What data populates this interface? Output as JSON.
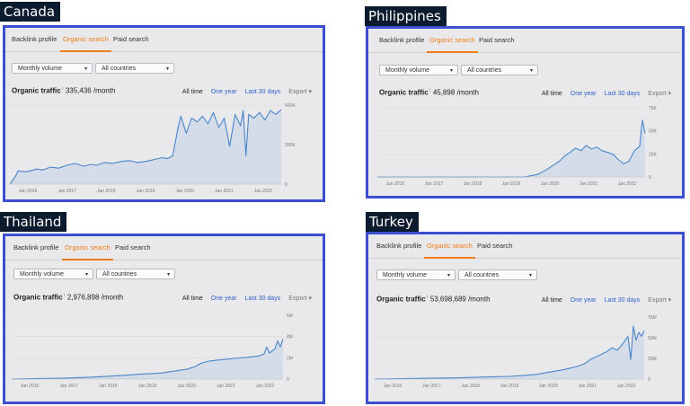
{
  "tabs": {
    "backlink": "Backlink profile",
    "organic": "Organic search",
    "paid": "Paid search"
  },
  "filters": {
    "volume": "Monthly volume",
    "countries": "All countries"
  },
  "metric_label": "Organic traffic",
  "info_glyph": "i",
  "ranges": {
    "all": "All time",
    "one_year": "One year",
    "last30": "Last 30 days",
    "export": "Export"
  },
  "caret": "▾",
  "colors": {
    "accent": "#f17c1a",
    "line": "#4a86c9",
    "fill": "#d3dce8",
    "border": "#3c4fd1",
    "link": "#2f5fc7"
  },
  "x_ticks": [
    "Jan 2016",
    "Jan 2017",
    "Jan 2018",
    "Jan 2019",
    "Jan 2020",
    "Jan 2021",
    "Jan 2022"
  ],
  "panels": [
    {
      "country": "Canada",
      "traffic": "335,436 /month",
      "y_ticks": [
        "400K",
        "200K",
        "0"
      ],
      "chart_data": {
        "type": "area",
        "title": "",
        "x": [
          0.0,
          0.01,
          0.02,
          0.03,
          0.06,
          0.1,
          0.12,
          0.15,
          0.18,
          0.21,
          0.24,
          0.27,
          0.3,
          0.32,
          0.35,
          0.38,
          0.41,
          0.44,
          0.47,
          0.5,
          0.53,
          0.56,
          0.58,
          0.6,
          0.62,
          0.63,
          0.65,
          0.67,
          0.69,
          0.71,
          0.73,
          0.75,
          0.77,
          0.79,
          0.81,
          0.83,
          0.85,
          0.86,
          0.87,
          0.88,
          0.9,
          0.92,
          0.94,
          0.96,
          0.98,
          1.0
        ],
        "values": [
          0,
          20000,
          40000,
          70000,
          65000,
          80000,
          75000,
          90000,
          85000,
          100000,
          110000,
          95000,
          105000,
          100000,
          115000,
          110000,
          120000,
          125000,
          115000,
          120000,
          130000,
          140000,
          135000,
          150000,
          300000,
          360000,
          270000,
          350000,
          330000,
          360000,
          320000,
          380000,
          300000,
          350000,
          200000,
          370000,
          310000,
          390000,
          150000,
          370000,
          350000,
          380000,
          340000,
          390000,
          370000,
          395000
        ],
        "ylim": [
          0,
          400000
        ]
      }
    },
    {
      "country": "Philippines",
      "traffic": "45,898 /month",
      "y_ticks": [
        "75K",
        "50K",
        "25K",
        "0"
      ],
      "chart_data": {
        "type": "area",
        "title": "",
        "x": [
          0.0,
          0.2,
          0.4,
          0.55,
          0.6,
          0.63,
          0.66,
          0.68,
          0.7,
          0.72,
          0.74,
          0.76,
          0.78,
          0.8,
          0.82,
          0.84,
          0.86,
          0.88,
          0.9,
          0.92,
          0.94,
          0.96,
          0.98,
          0.99,
          1.0
        ],
        "values": [
          0,
          0,
          0,
          0,
          3000,
          8000,
          14000,
          18000,
          24000,
          28000,
          33000,
          30000,
          36000,
          32000,
          34000,
          30000,
          28000,
          26000,
          20000,
          15000,
          18000,
          30000,
          35000,
          65000,
          50000
        ],
        "ylim": [
          0,
          75000
        ]
      }
    },
    {
      "country": "Thailand",
      "traffic": "2,976,898 /month",
      "y_ticks": [
        "6M",
        "4M",
        "2M",
        "0"
      ],
      "chart_data": {
        "type": "area",
        "title": "",
        "x": [
          0.0,
          0.1,
          0.2,
          0.3,
          0.4,
          0.48,
          0.55,
          0.6,
          0.65,
          0.68,
          0.7,
          0.73,
          0.76,
          0.8,
          0.84,
          0.88,
          0.91,
          0.93,
          0.94,
          0.95,
          0.96,
          0.97,
          0.98,
          0.99,
          1.0
        ],
        "values": [
          0,
          50000,
          100000,
          200000,
          350000,
          500000,
          600000,
          800000,
          1000000,
          1300000,
          1600000,
          1800000,
          1900000,
          2000000,
          2100000,
          2200000,
          2300000,
          2500000,
          3200000,
          2600000,
          2800000,
          3000000,
          3800000,
          3200000,
          4000000
        ],
        "ylim": [
          0,
          6000000
        ]
      }
    },
    {
      "country": "Turkey",
      "traffic": "53,698,689 /month",
      "y_ticks": [
        "75M",
        "50M",
        "25M",
        "0"
      ],
      "chart_data": {
        "type": "area",
        "title": "",
        "x": [
          0.0,
          0.1,
          0.2,
          0.3,
          0.4,
          0.5,
          0.55,
          0.6,
          0.65,
          0.7,
          0.75,
          0.78,
          0.8,
          0.83,
          0.86,
          0.88,
          0.9,
          0.92,
          0.94,
          0.95,
          0.96,
          0.97,
          0.98,
          0.99,
          1.0
        ],
        "values": [
          0,
          500000,
          1000000,
          1500000,
          2500000,
          3500000,
          4500000,
          6000000,
          9000000,
          12000000,
          16000000,
          20000000,
          25000000,
          30000000,
          35000000,
          40000000,
          37000000,
          45000000,
          55000000,
          25000000,
          68000000,
          50000000,
          60000000,
          55000000,
          62000000
        ],
        "ylim": [
          0,
          75000000
        ]
      }
    }
  ]
}
